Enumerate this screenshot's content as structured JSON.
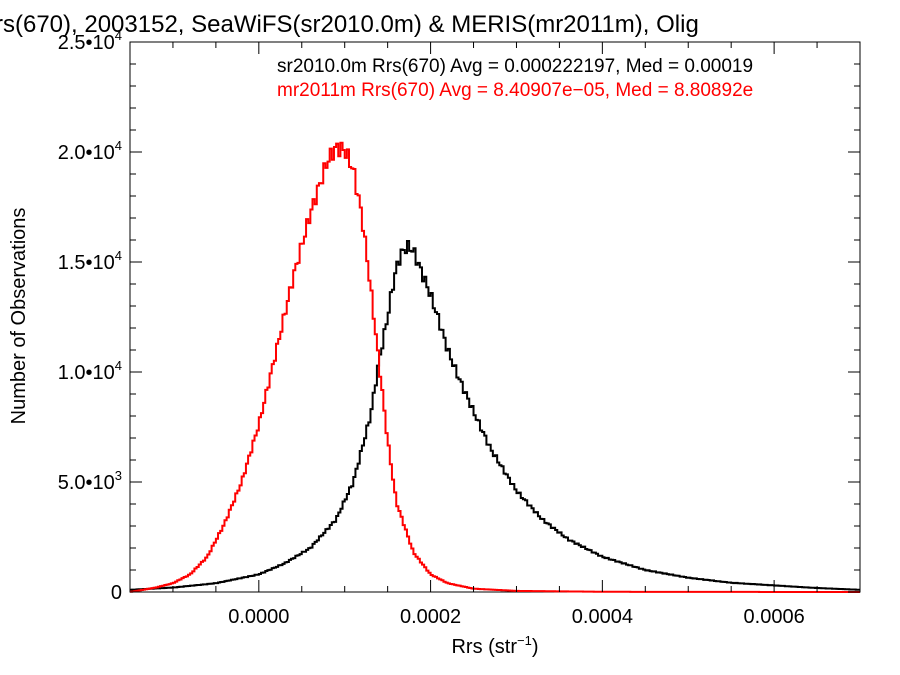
{
  "chart_data": {
    "type": "line",
    "title": "rs(670), 2003152, SeaWiFS(sr2010.0m) & MERIS(mr2011m), Olig",
    "xlabel": "Rrs (str",
    "xlabel_sup": "−1",
    "xlabel_end": ")",
    "ylabel": "Number of Observations",
    "xlim": [
      -0.00015,
      0.0007
    ],
    "ylim": [
      0,
      25000
    ],
    "grid": false,
    "x_ticks": [
      {
        "value": 0.0,
        "label": "0.0000"
      },
      {
        "value": 0.0002,
        "label": "0.0002"
      },
      {
        "value": 0.0004,
        "label": "0.0004"
      },
      {
        "value": 0.0006,
        "label": "0.0006"
      }
    ],
    "y_ticks": [
      {
        "value": 0,
        "label": "0",
        "sup": ""
      },
      {
        "value": 5000,
        "label": "5.0•10",
        "sup": "3"
      },
      {
        "value": 10000,
        "label": "1.0•10",
        "sup": "4"
      },
      {
        "value": 15000,
        "label": "1.5•10",
        "sup": "4"
      },
      {
        "value": 20000,
        "label": "2.0•10",
        "sup": "4"
      },
      {
        "value": 25000,
        "label": "2.5•10",
        "sup": "4"
      }
    ],
    "legend_placement": "top-right",
    "legend": [
      {
        "text": "sr2010.0m Rrs(670) Avg = 0.000222197, Med = 0.00019",
        "color": "#000000"
      },
      {
        "text": "mr2011m Rrs(670) Avg = 8.40907e−05, Med = 8.80892e",
        "color": "#ff0000"
      }
    ],
    "series": [
      {
        "color": "#000000",
        "x": [
          -0.00015,
          -0.0001,
          -5e-05,
          0.0,
          3e-05,
          6e-05,
          9e-05,
          0.00011,
          0.00013,
          0.00014,
          0.00015,
          0.000155,
          0.00016,
          0.000165,
          0.00017,
          0.000175,
          0.00018,
          0.000185,
          0.00019,
          0.0002,
          0.00021,
          0.00022,
          0.00023,
          0.00025,
          0.00027,
          0.0003,
          0.00033,
          0.00036,
          0.0004,
          0.00045,
          0.0005,
          0.00055,
          0.0006,
          0.00065,
          0.0007
        ],
        "y": [
          100,
          200,
          400,
          800,
          1300,
          2000,
          3300,
          5000,
          8000,
          10500,
          12500,
          13700,
          14700,
          15300,
          15600,
          15700,
          15500,
          15000,
          14500,
          13500,
          12300,
          11000,
          10000,
          8200,
          6500,
          4600,
          3300,
          2400,
          1600,
          1000,
          650,
          420,
          300,
          180,
          100
        ]
      },
      {
        "color": "#ff0000",
        "x": [
          -0.00015,
          -0.00012,
          -0.0001,
          -8e-05,
          -6e-05,
          -4e-05,
          -2e-05,
          0.0,
          2e-05,
          4e-05,
          6e-05,
          8e-05,
          9e-05,
          0.0001,
          0.00011,
          0.00012,
          0.00013,
          0.00014,
          0.00015,
          0.00016,
          0.00018,
          0.0002,
          0.00022,
          0.00025,
          0.0003,
          0.0004,
          0.0005,
          0.0007
        ],
        "y": [
          0,
          200,
          400,
          800,
          1600,
          3100,
          5000,
          7600,
          10900,
          14300,
          17200,
          19600,
          20200,
          20100,
          19200,
          17100,
          13900,
          10400,
          6900,
          4100,
          1800,
          800,
          400,
          150,
          50,
          10,
          5,
          0
        ]
      }
    ]
  }
}
